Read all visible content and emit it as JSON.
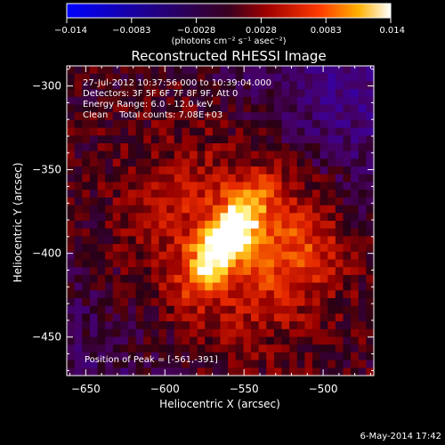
{
  "chart_data": {
    "type": "heatmap",
    "title": "Reconstructed RHESSI Image",
    "xlabel": "Heliocentric X (arcsec)",
    "ylabel": "Heliocentric Y (arcsec)",
    "xlim": [
      -662,
      -468
    ],
    "ylim": [
      -473,
      -288
    ],
    "xticks": [
      -650,
      -600,
      -550,
      -500
    ],
    "yticks": [
      -300,
      -350,
      -400,
      -450
    ],
    "colorbar": {
      "range": [
        -0.014,
        0.014
      ],
      "ticks": [
        "-0.014",
        "-0.0083",
        "-0.0028",
        "0.0028",
        "0.0083",
        "0.014"
      ],
      "unit_label": "(photons cm⁻² s⁻¹ asec⁻²)"
    },
    "annotations": [
      "27-Jul-2012 10:37:56.000 to 10:39:04.000",
      "Detectors: 3F 5F 6F 7F 8F 9F, Att 0",
      "Energy Range: 6.0 - 12.0 keV",
      "Clean    Total counts: 7.08E+03"
    ],
    "peak_label": "Position of Peak = [-561,-391]",
    "peak": {
      "x": -561,
      "y": -391,
      "value": 0.014
    },
    "timestamp": "6-May-2014 17:42"
  }
}
